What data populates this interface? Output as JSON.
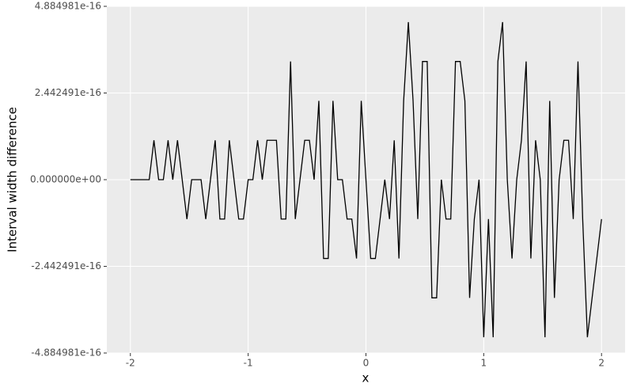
{
  "chart_data": {
    "type": "line",
    "x_label": "x",
    "y_label": "Interval width difference",
    "x": [
      -2,
      -1.96,
      -1.92,
      -1.88,
      -1.84,
      -1.8,
      -1.76,
      -1.72,
      -1.68,
      -1.64,
      -1.6,
      -1.56,
      -1.52,
      -1.48,
      -1.44,
      -1.4,
      -1.36,
      -1.32,
      -1.28,
      -1.24,
      -1.2,
      -1.16,
      -1.12,
      -1.08,
      -1.04,
      -1,
      -0.96,
      -0.92,
      -0.88,
      -0.84,
      -0.8,
      -0.76,
      -0.72,
      -0.68,
      -0.64,
      -0.6,
      -0.56,
      -0.52,
      -0.48,
      -0.44,
      -0.4,
      -0.36,
      -0.32,
      -0.28,
      -0.24,
      -0.2,
      -0.16,
      -0.12,
      -0.08,
      -0.04,
      0,
      0.04,
      0.08,
      0.12,
      0.16,
      0.2,
      0.24,
      0.28,
      0.32,
      0.36,
      0.4,
      0.44,
      0.48,
      0.52,
      0.56,
      0.6,
      0.64,
      0.68,
      0.72,
      0.76,
      0.8,
      0.84,
      0.88,
      0.92,
      0.96,
      1,
      1.04,
      1.08,
      1.12,
      1.16,
      1.2,
      1.24,
      1.28,
      1.32,
      1.36,
      1.4,
      1.44,
      1.48,
      1.52,
      1.56,
      1.6,
      1.64,
      1.68,
      1.72,
      1.76,
      1.8,
      1.84,
      1.88,
      1.92,
      1.96,
      2
    ],
    "series": [
      {
        "color": "#000000",
        "values": [
          0,
          0,
          0,
          0,
          0,
          1.110223e-16,
          0,
          0,
          1.110223e-16,
          0,
          1.110223e-16,
          0,
          -1.110223e-16,
          0,
          0,
          0,
          -1.110223e-16,
          0,
          1.110223e-16,
          -1.110223e-16,
          -1.110223e-16,
          1.110223e-16,
          0,
          -1.110223e-16,
          -1.110223e-16,
          0,
          0,
          1.110223e-16,
          0,
          1.110223e-16,
          1.110223e-16,
          1.110223e-16,
          -1.110223e-16,
          -1.110223e-16,
          3.330669e-16,
          -1.110223e-16,
          0,
          1.110223e-16,
          1.110223e-16,
          0,
          2.220446e-16,
          -2.220446e-16,
          -2.220446e-16,
          2.220446e-16,
          0,
          0,
          -1.110223e-16,
          -1.110223e-16,
          -2.220446e-16,
          2.220446e-16,
          0,
          -2.220446e-16,
          -2.220446e-16,
          -1.110223e-16,
          0,
          -1.110223e-16,
          1.110223e-16,
          -2.220446e-16,
          2.220446e-16,
          4.440892e-16,
          2.220446e-16,
          -1.110223e-16,
          3.330669e-16,
          3.330669e-16,
          -3.330669e-16,
          -3.330669e-16,
          0,
          -1.110223e-16,
          -1.110223e-16,
          3.330669e-16,
          3.330669e-16,
          2.220446e-16,
          -3.330669e-16,
          -1.110223e-16,
          0,
          -4.440892e-16,
          -1.110223e-16,
          -4.440892e-16,
          3.330669e-16,
          4.440892e-16,
          0,
          -2.220446e-16,
          0,
          1.110223e-16,
          3.330669e-16,
          -2.220446e-16,
          1.110223e-16,
          0,
          -4.440892e-16,
          2.220446e-16,
          -3.330669e-16,
          0,
          1.110223e-16,
          1.110223e-16,
          -1.110223e-16,
          3.330669e-16,
          -1.110223e-16,
          -4.440892e-16,
          -3.330669e-16,
          -2.220446e-16,
          -1.110223e-16
        ]
      }
    ],
    "xlim": [
      -2.2,
      2.2
    ],
    "xticks": [
      -2,
      -1,
      0,
      1,
      2
    ],
    "ylim": [
      -4.884981e-16,
      4.884981e-16
    ],
    "yticks": [
      {
        "value": -4.884981e-16,
        "label": "-4.884981e-16"
      },
      {
        "value": -2.442491e-16,
        "label": "-2.442491e-16"
      },
      {
        "value": 0,
        "label": "0.000000e+00"
      },
      {
        "value": 2.442491e-16,
        "label": "2.442491e-16"
      },
      {
        "value": 4.884981e-16,
        "label": "4.884981e-16"
      }
    ],
    "grid": true
  }
}
